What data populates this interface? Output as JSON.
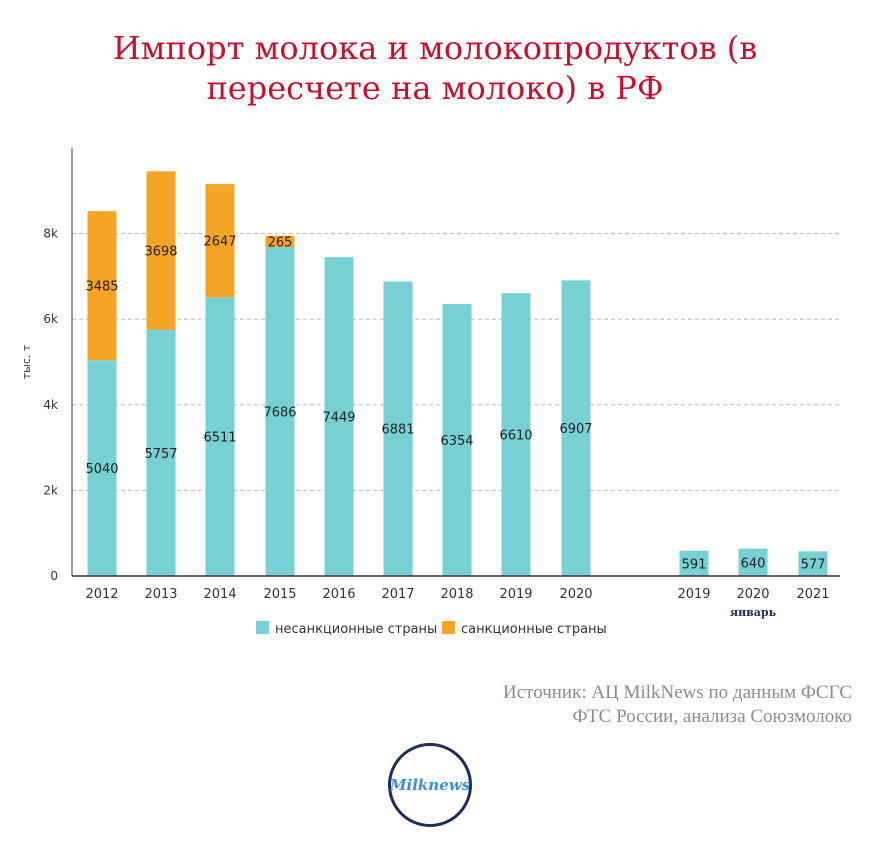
{
  "title_lines": [
    "Импорт молока и молокопродуктов (в",
    "пересчете на молоко) в РФ"
  ],
  "source_lines": [
    "Источник: АЦ MilkNews по данным ФСГС",
    "ФТС России, анализа Союзмолоко"
  ],
  "logo_text": "Milknews",
  "colors": {
    "non_sanction": "#76d0d4",
    "sanction": "#f5a425",
    "title": "#c8102e",
    "axis": "#333333",
    "grid": "#bbbbbb"
  },
  "chart_data": {
    "type": "bar",
    "stacked": true,
    "ylabel": "тыс. т",
    "ylim": [
      0,
      10000
    ],
    "yticks": [
      0,
      2000,
      4000,
      6000,
      8000
    ],
    "ytick_labels": [
      "0",
      "2k",
      "4k",
      "6k",
      "8k"
    ],
    "grid": true,
    "legend_position": "bottom",
    "categories": [
      "2012",
      "2013",
      "2014",
      "2015",
      "2016",
      "2017",
      "2018",
      "2019",
      "2020",
      "2019",
      "2020",
      "2021"
    ],
    "group_label": {
      "text": "январь",
      "under_category_index": 10
    },
    "series": [
      {
        "name": "несанкционные страны",
        "color": "#76d0d4",
        "values": [
          5040,
          5757,
          6511,
          7686,
          7449,
          6881,
          6354,
          6610,
          6907,
          591,
          640,
          577
        ]
      },
      {
        "name": "санкционные страны",
        "color": "#f5a425",
        "values": [
          3485,
          3698,
          2647,
          265,
          0,
          0,
          0,
          0,
          0,
          0,
          0,
          0
        ]
      }
    ]
  }
}
